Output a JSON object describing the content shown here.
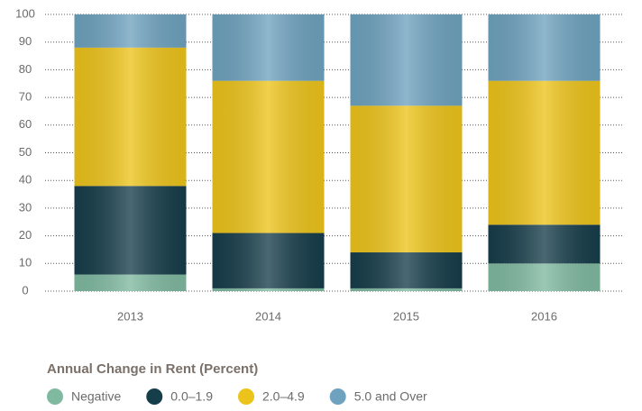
{
  "chart_data": {
    "type": "stacked_bar",
    "legend_title": "Annual Change in Rent (Percent)",
    "categories": [
      "2013",
      "2014",
      "2015",
      "2016"
    ],
    "series": [
      {
        "name": "Negative",
        "color": "#7fb9a0",
        "values": [
          6,
          1,
          1,
          10
        ]
      },
      {
        "name": "0.0–1.9",
        "color": "#163d4a",
        "values": [
          32,
          20,
          13,
          14
        ]
      },
      {
        "name": "2.0–4.9",
        "color": "#ecc31a",
        "values": [
          50,
          55,
          53,
          52
        ]
      },
      {
        "name": "5.0 and Over",
        "color": "#6ea2be",
        "values": [
          12,
          24,
          33,
          24
        ]
      }
    ],
    "ylim": [
      0,
      100
    ],
    "yticks": [
      0,
      10,
      20,
      30,
      40,
      50,
      60,
      70,
      80,
      90,
      100
    ],
    "grid": true,
    "legend": "bottom"
  }
}
